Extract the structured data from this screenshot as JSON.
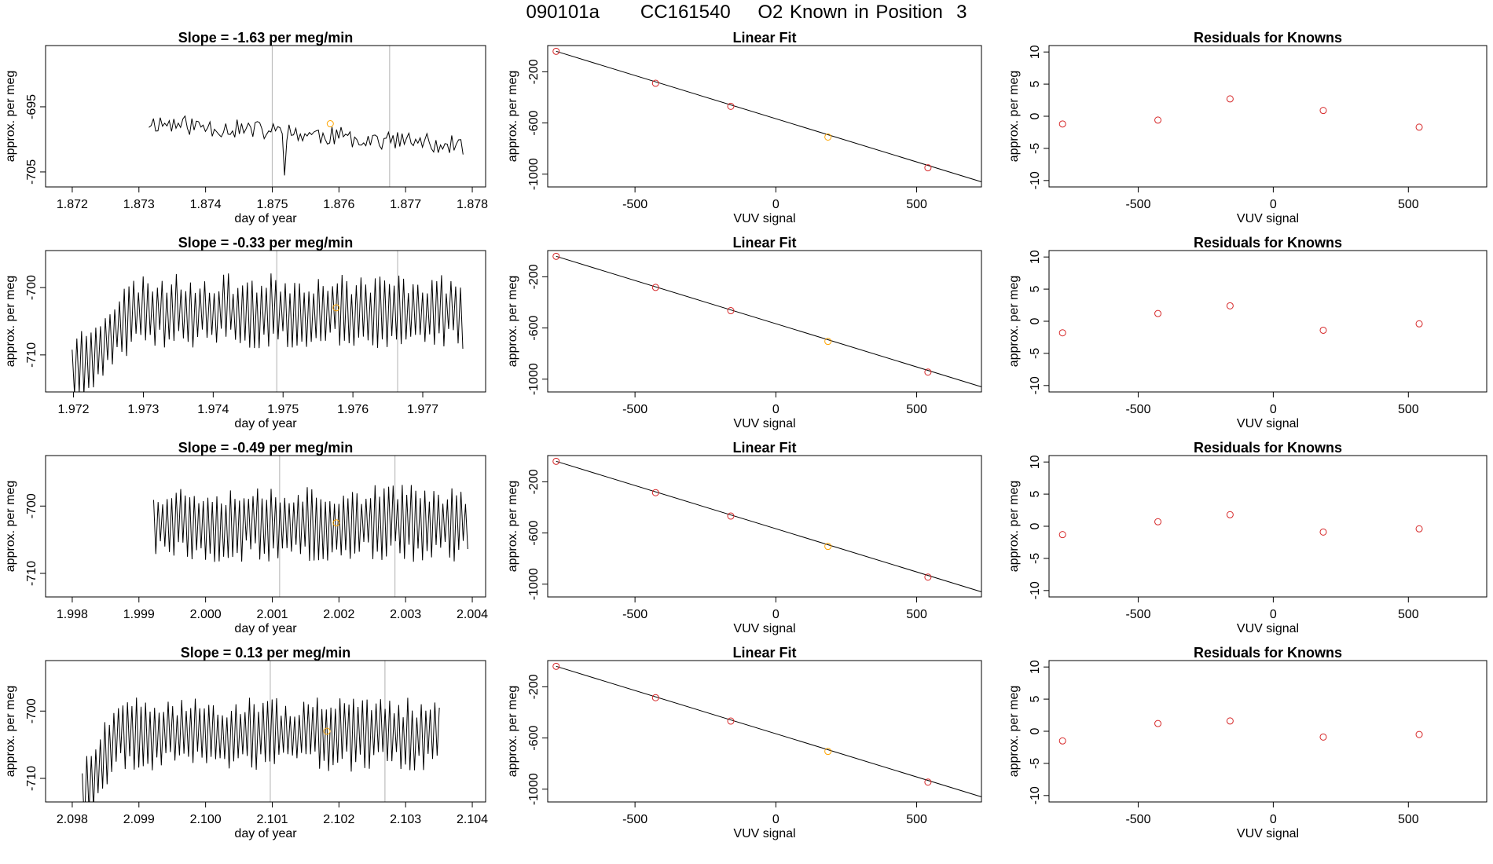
{
  "page": {
    "title": "090101a      CC161540    O2 Known in Position  3"
  },
  "colors": {
    "line": "#000000",
    "marker": "#d62728",
    "highlight": "#ffa500",
    "vline": "#bdbdbd"
  },
  "chart_data": [
    {
      "type": "line",
      "row": 0,
      "col": 0,
      "title": "Slope =  -1.63  per meg/min",
      "xlabel": "day of year",
      "ylabel": "approx. per meg",
      "xlim": [
        1.8716,
        1.8782
      ],
      "ylim": [
        -707.3,
        -685.6
      ],
      "xticks": [
        1.872,
        1.873,
        1.874,
        1.875,
        1.876,
        1.877,
        1.878
      ],
      "xtick_labels": [
        "1.872",
        "1.873",
        "1.874",
        "1.875",
        "1.876",
        "1.877",
        "1.878"
      ],
      "yticks": [
        -695,
        -705
      ],
      "ytick_labels": [
        "-695",
        "-705"
      ],
      "vlines": [
        1.875,
        1.87676
      ],
      "highlight_point": [
        1.87587,
        -697.6
      ],
      "signal": {
        "start": 1.87315,
        "end": 1.87785,
        "step": 3.39e-05,
        "base": -697.4,
        "amp": 1.5,
        "pattern": "irregular",
        "slope": -3.6,
        "seed": 11
      }
    },
    {
      "type": "scatter",
      "row": 0,
      "col": 1,
      "title": "Linear Fit",
      "xlabel": "VUV signal",
      "ylabel": "approx. per meg",
      "xlim": [
        -810,
        730
      ],
      "ylim": [
        -1100,
        5
      ],
      "xticks": [
        -500,
        0,
        500
      ],
      "xtick_labels": [
        "-500",
        "0",
        "500"
      ],
      "yticks": [
        -200,
        -600,
        -1000
      ],
      "ytick_labels": [
        "-200",
        "-600",
        "-1000"
      ],
      "fit_line": [
        [
          -780,
          -40
        ],
        [
          730,
          -1060
        ]
      ],
      "points": [
        [
          -780,
          -40
        ],
        [
          -427,
          -290
        ],
        [
          -160,
          -470
        ],
        [
          185,
          -710
        ],
        [
          540,
          -950
        ]
      ],
      "highlight_index": 3
    },
    {
      "type": "scatter",
      "row": 0,
      "col": 2,
      "title": "Residuals for Knowns",
      "xlabel": "VUV signal",
      "ylabel": "approx. per meg",
      "xlim": [
        -830,
        790
      ],
      "ylim": [
        -11,
        11
      ],
      "xticks": [
        -500,
        0,
        500
      ],
      "xtick_labels": [
        "-500",
        "0",
        "500"
      ],
      "yticks": [
        10,
        5,
        0,
        -5,
        -10
      ],
      "ytick_labels": [
        "10",
        "5",
        "0",
        "-5",
        "-10"
      ],
      "points": [
        [
          -780,
          -1.2
        ],
        [
          -427,
          -0.6
        ],
        [
          -160,
          2.7
        ],
        [
          185,
          0.9
        ],
        [
          540,
          -1.7
        ]
      ]
    },
    {
      "type": "line",
      "row": 1,
      "col": 0,
      "title": "Slope =  -0.33  per meg/min",
      "xlabel": "day of year",
      "ylabel": "approx. per meg",
      "xlim": [
        1.9716,
        1.9779
      ],
      "ylim": [
        -715.5,
        -694.5
      ],
      "xticks": [
        1.972,
        1.973,
        1.974,
        1.975,
        1.976,
        1.977
      ],
      "xtick_labels": [
        "1.972",
        "1.973",
        "1.974",
        "1.975",
        "1.976",
        "1.977"
      ],
      "yticks": [
        -700,
        -710
      ],
      "ytick_labels": [
        "-700",
        "-710"
      ],
      "vlines": [
        1.97491,
        1.97664
      ],
      "highlight_point": [
        1.97576,
        -703.0
      ],
      "signal": {
        "start": 1.97198,
        "end": 1.97758,
        "step": 3.39e-05,
        "base": -703.5,
        "amp": 5.6,
        "pattern": "oscillating",
        "slope": 0,
        "seed": 23,
        "rise_end": 1.9729
      }
    },
    {
      "type": "scatter",
      "row": 1,
      "col": 1,
      "title": "Linear Fit",
      "xlabel": "VUV signal",
      "ylabel": "approx. per meg",
      "xlim": [
        -810,
        730
      ],
      "ylim": [
        -1100,
        5
      ],
      "xticks": [
        -500,
        0,
        500
      ],
      "xtick_labels": [
        "-500",
        "0",
        "500"
      ],
      "yticks": [
        -200,
        -600,
        -1000
      ],
      "ytick_labels": [
        "-200",
        "-600",
        "-1000"
      ],
      "fit_line": [
        [
          -780,
          -40
        ],
        [
          730,
          -1060
        ]
      ],
      "points": [
        [
          -780,
          -40
        ],
        [
          -427,
          -283
        ],
        [
          -160,
          -465
        ],
        [
          185,
          -705
        ],
        [
          540,
          -945
        ]
      ],
      "highlight_index": 3
    },
    {
      "type": "scatter",
      "row": 1,
      "col": 2,
      "title": "Residuals for Knowns",
      "xlabel": "VUV signal",
      "ylabel": "approx. per meg",
      "xlim": [
        -830,
        790
      ],
      "ylim": [
        -11,
        11
      ],
      "xticks": [
        -500,
        0,
        500
      ],
      "xtick_labels": [
        "-500",
        "0",
        "500"
      ],
      "yticks": [
        10,
        5,
        0,
        -5,
        -10
      ],
      "ytick_labels": [
        "10",
        "5",
        "0",
        "-5",
        "-10"
      ],
      "points": [
        [
          -780,
          -1.8
        ],
        [
          -427,
          1.2
        ],
        [
          -160,
          2.4
        ],
        [
          185,
          -1.4
        ],
        [
          540,
          -0.4
        ]
      ]
    },
    {
      "type": "line",
      "row": 2,
      "col": 0,
      "title": "Slope =  -0.49  per meg/min",
      "xlabel": "day of year",
      "ylabel": "approx. per meg",
      "xlim": [
        1.9976,
        2.0042
      ],
      "ylim": [
        -713.5,
        -692.5
      ],
      "xticks": [
        1.998,
        1.999,
        2.0,
        2.001,
        2.002,
        2.003,
        2.004
      ],
      "xtick_labels": [
        "1.998",
        "1.999",
        "2.000",
        "2.001",
        "2.002",
        "2.003",
        "2.004"
      ],
      "yticks": [
        -700,
        -710
      ],
      "ytick_labels": [
        "-700",
        "-710"
      ],
      "vlines": [
        2.00111,
        2.00284
      ],
      "highlight_point": [
        2.00196,
        -702.5
      ],
      "signal": {
        "start": 1.99922,
        "end": 2.00394,
        "step": 3.39e-05,
        "base": -702.5,
        "amp": 5.8,
        "pattern": "oscillating",
        "slope": 0,
        "seed": 37
      }
    },
    {
      "type": "scatter",
      "row": 2,
      "col": 1,
      "title": "Linear Fit",
      "xlabel": "VUV signal",
      "ylabel": "approx. per meg",
      "xlim": [
        -810,
        730
      ],
      "ylim": [
        -1100,
        5
      ],
      "xticks": [
        -500,
        0,
        500
      ],
      "xtick_labels": [
        "-500",
        "0",
        "500"
      ],
      "yticks": [
        -200,
        -600,
        -1000
      ],
      "ytick_labels": [
        "-200",
        "-600",
        "-1000"
      ],
      "fit_line": [
        [
          -780,
          -40
        ],
        [
          730,
          -1060
        ]
      ],
      "points": [
        [
          -780,
          -40
        ],
        [
          -427,
          -285
        ],
        [
          -160,
          -468
        ],
        [
          185,
          -705
        ],
        [
          540,
          -945
        ]
      ],
      "highlight_index": 3
    },
    {
      "type": "scatter",
      "row": 2,
      "col": 2,
      "title": "Residuals for Knowns",
      "xlabel": "VUV signal",
      "ylabel": "approx. per meg",
      "xlim": [
        -830,
        790
      ],
      "ylim": [
        -11,
        11
      ],
      "xticks": [
        -500,
        0,
        500
      ],
      "xtick_labels": [
        "-500",
        "0",
        "500"
      ],
      "yticks": [
        10,
        5,
        0,
        -5,
        -10
      ],
      "ytick_labels": [
        "10",
        "5",
        "0",
        "-5",
        "-10"
      ],
      "points": [
        [
          -780,
          -1.3
        ],
        [
          -427,
          0.7
        ],
        [
          -160,
          1.8
        ],
        [
          185,
          -0.9
        ],
        [
          540,
          -0.4
        ]
      ]
    },
    {
      "type": "line",
      "row": 3,
      "col": 0,
      "title": "Slope =  0.13  per meg/min",
      "xlabel": "day of year",
      "ylabel": "approx. per meg",
      "xlim": [
        2.0976,
        2.1042
      ],
      "ylim": [
        -713.5,
        -692.5
      ],
      "xticks": [
        2.098,
        2.099,
        2.1,
        2.101,
        2.102,
        2.103,
        2.104
      ],
      "xtick_labels": [
        "2.098",
        "2.099",
        "2.100",
        "2.101",
        "2.102",
        "2.103",
        "2.104"
      ],
      "yticks": [
        -700,
        -710
      ],
      "ytick_labels": [
        "-700",
        "-710"
      ],
      "vlines": [
        2.10097,
        2.10269
      ],
      "highlight_point": [
        2.10182,
        -703.0
      ],
      "signal": {
        "start": 2.09815,
        "end": 2.10352,
        "step": 3.39e-05,
        "base": -703.5,
        "amp": 5.5,
        "pattern": "oscillating",
        "slope": 0,
        "seed": 51,
        "rise_end": 2.0987
      }
    },
    {
      "type": "scatter",
      "row": 3,
      "col": 1,
      "title": "Linear Fit",
      "xlabel": "VUV signal",
      "ylabel": "approx. per meg",
      "xlim": [
        -810,
        730
      ],
      "ylim": [
        -1100,
        5
      ],
      "xticks": [
        -500,
        0,
        500
      ],
      "xtick_labels": [
        "-500",
        "0",
        "500"
      ],
      "yticks": [
        -200,
        -600,
        -1000
      ],
      "ytick_labels": [
        "-200",
        "-600",
        "-1000"
      ],
      "fit_line": [
        [
          -780,
          -40
        ],
        [
          730,
          -1060
        ]
      ],
      "points": [
        [
          -780,
          -40
        ],
        [
          -427,
          -285
        ],
        [
          -160,
          -468
        ],
        [
          185,
          -705
        ],
        [
          540,
          -945
        ]
      ],
      "highlight_index": 3
    },
    {
      "type": "scatter",
      "row": 3,
      "col": 2,
      "title": "Residuals for Knowns",
      "xlabel": "VUV signal",
      "ylabel": "approx. per meg",
      "xlim": [
        -830,
        790
      ],
      "ylim": [
        -11,
        11
      ],
      "xticks": [
        -500,
        0,
        500
      ],
      "xtick_labels": [
        "-500",
        "0",
        "500"
      ],
      "yticks": [
        10,
        5,
        0,
        -5,
        -10
      ],
      "ytick_labels": [
        "10",
        "5",
        "0",
        "-5",
        "-10"
      ],
      "points": [
        [
          -780,
          -1.5
        ],
        [
          -427,
          1.2
        ],
        [
          -160,
          1.6
        ],
        [
          185,
          -0.9
        ],
        [
          540,
          -0.5
        ]
      ]
    }
  ]
}
